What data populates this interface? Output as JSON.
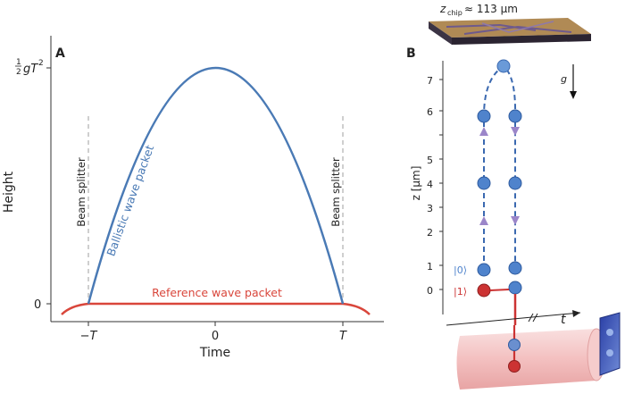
{
  "panel_a": {
    "label": "A",
    "ylabel": "Height",
    "xlabel": "Time",
    "yticks": {
      "top_coef": "1",
      "top_coef_den": "2",
      "top_rest": "gT",
      "top_exp": "2",
      "zero": "0"
    },
    "xticks": [
      "−T",
      "0",
      "T"
    ],
    "beam_splitter_label": "Beam splitter",
    "ballistic_label": "Ballistic wave packet",
    "reference_label": "Reference wave packet",
    "colors": {
      "ballistic": "#4a7ab5",
      "reference": "#d9463b",
      "dashed": "#b5b5b5"
    }
  },
  "panel_b": {
    "label": "B",
    "chip_label_z": "z",
    "chip_label_sub": "chip",
    "chip_label_rest": "≈ 113 μm",
    "g_label": "g",
    "ylabel": "z [μm]",
    "yticks": [
      "0",
      "1",
      "2",
      "3",
      "4",
      "5",
      "6",
      "7"
    ],
    "state0": "|0⟩",
    "state1": "|1⟩",
    "t_label": "t",
    "colors": {
      "packet": "#4f83cc",
      "arrow": "#9b86c9",
      "red": "#cc3333"
    }
  },
  "chart_data": {
    "type": "line",
    "xlabel": "Time",
    "ylabel": "Height",
    "x_ticks": [
      "−T",
      "0",
      "T"
    ],
    "y_ticks": [
      "0",
      "½gT²"
    ],
    "series": [
      {
        "name": "Ballistic wave packet",
        "x": [
          -1,
          -0.5,
          0,
          0.5,
          1
        ],
        "y": [
          0,
          0.75,
          1,
          0.75,
          0
        ]
      },
      {
        "name": "Reference wave packet",
        "x": [
          -1,
          0,
          1
        ],
        "y": [
          0,
          0,
          0
        ]
      }
    ]
  }
}
